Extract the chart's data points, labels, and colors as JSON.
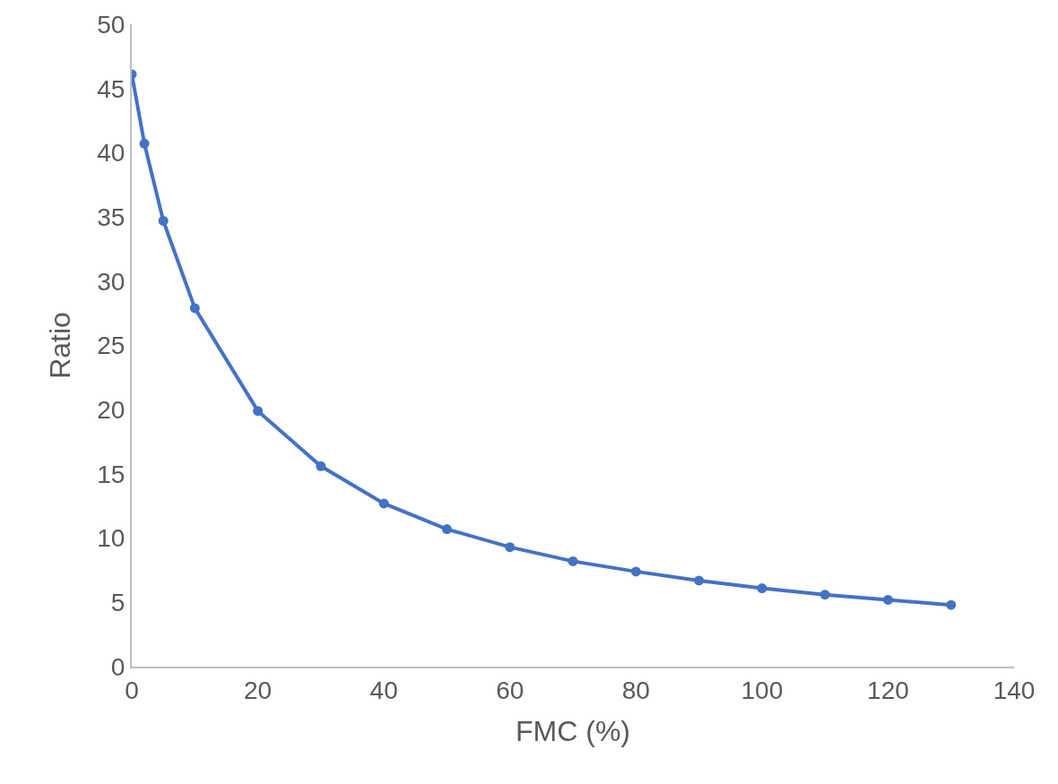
{
  "chart_data": {
    "type": "line",
    "xlabel": "FMC (%)",
    "ylabel": "Ratio",
    "x": [
      0,
      2,
      5,
      10,
      20,
      30,
      40,
      50,
      60,
      70,
      80,
      90,
      100,
      110,
      120,
      130
    ],
    "series": [
      {
        "color": "#4472c4",
        "values": [
          46.1,
          40.7,
          34.7,
          27.9,
          19.9,
          15.6,
          12.7,
          10.7,
          9.3,
          8.2,
          7.4,
          6.7,
          6.1,
          5.6,
          5.2,
          4.8
        ]
      }
    ],
    "xlim": [
      0,
      140
    ],
    "xticks": [
      0,
      20,
      40,
      60,
      80,
      100,
      120,
      140
    ],
    "ylim": [
      0,
      50
    ],
    "yticks": [
      0,
      5,
      10,
      15,
      20,
      25,
      30,
      35,
      40,
      45,
      50
    ],
    "grid": false,
    "legend": false,
    "marker": "circle",
    "line_style": "solid"
  }
}
